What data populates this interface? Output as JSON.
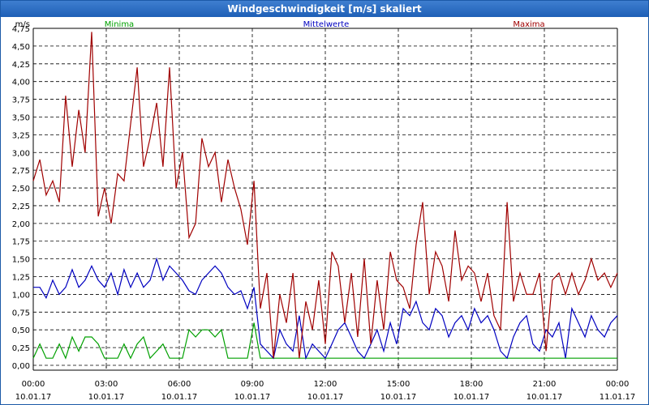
{
  "window": {
    "title": "Windgeschwindigkeit [m/s] skaliert"
  },
  "chart_data": {
    "type": "line",
    "title": "Windgeschwindigkeit [m/s] skaliert",
    "ylabel": "m/s",
    "ylim": [
      0,
      4.75
    ],
    "yticks": [
      "0,00",
      "0,25",
      "0,50",
      "0,75",
      "1,00",
      "1,25",
      "1,50",
      "1,75",
      "2,00",
      "2,25",
      "2,50",
      "2,75",
      "3,00",
      "3,25",
      "3,50",
      "3,75",
      "4,00",
      "4,25",
      "4,50",
      "4,75"
    ],
    "xlim": [
      0,
      24
    ],
    "xticks": [
      {
        "time": "00:00",
        "date": "10.01.17"
      },
      {
        "time": "03:00",
        "date": "10.01.17"
      },
      {
        "time": "06:00",
        "date": "10.01.17"
      },
      {
        "time": "09:00",
        "date": "10.01.17"
      },
      {
        "time": "12:00",
        "date": "10.01.17"
      },
      {
        "time": "15:00",
        "date": "10.01.17"
      },
      {
        "time": "18:00",
        "date": "10.01.17"
      },
      {
        "time": "21:00",
        "date": "10.01.17"
      },
      {
        "time": "00:00",
        "date": "11.01.17"
      }
    ],
    "grid": true,
    "series": [
      {
        "name": "Minima",
        "color": "#00a000",
        "x": [
          0,
          0.27,
          0.53,
          0.8,
          1.07,
          1.33,
          1.6,
          1.87,
          2.13,
          2.4,
          2.67,
          2.93,
          3.2,
          3.47,
          3.73,
          4,
          4.27,
          4.53,
          4.8,
          5.07,
          5.33,
          5.6,
          5.87,
          6.13,
          6.4,
          6.67,
          6.93,
          7.2,
          7.47,
          7.73,
          8,
          8.27,
          8.53,
          8.8,
          9.07,
          9.33,
          12,
          15,
          18,
          21,
          24
        ],
        "values": [
          0.1,
          0.3,
          0.1,
          0.1,
          0.3,
          0.1,
          0.4,
          0.2,
          0.4,
          0.4,
          0.3,
          0.1,
          0.1,
          0.1,
          0.3,
          0.1,
          0.3,
          0.4,
          0.1,
          0.2,
          0.3,
          0.1,
          0.1,
          0.1,
          0.5,
          0.4,
          0.5,
          0.5,
          0.4,
          0.5,
          0.1,
          0.1,
          0.1,
          0.1,
          0.6,
          0.1,
          0.1,
          0.1,
          0.1,
          0.1,
          0.1
        ]
      },
      {
        "name": "Mittelwerte",
        "color": "#0000c0",
        "x": [
          0,
          0.27,
          0.53,
          0.8,
          1.07,
          1.33,
          1.6,
          1.87,
          2.13,
          2.4,
          2.67,
          2.93,
          3.2,
          3.47,
          3.73,
          4,
          4.27,
          4.53,
          4.8,
          5.07,
          5.33,
          5.6,
          5.87,
          6.13,
          6.4,
          6.67,
          6.93,
          7.2,
          7.47,
          7.73,
          8,
          8.27,
          8.53,
          8.8,
          9.07,
          9.33,
          9.6,
          9.87,
          10.13,
          10.4,
          10.67,
          10.93,
          11.2,
          11.47,
          11.73,
          12,
          12.27,
          12.53,
          12.8,
          13.07,
          13.33,
          13.6,
          13.87,
          14.13,
          14.4,
          14.67,
          14.93,
          15.2,
          15.47,
          15.73,
          16,
          16.27,
          16.53,
          16.8,
          17.07,
          17.33,
          17.6,
          17.87,
          18.13,
          18.4,
          18.67,
          18.93,
          19.2,
          19.47,
          19.73,
          20,
          20.27,
          20.53,
          20.8,
          21.07,
          21.33,
          21.6,
          21.87,
          22.13,
          22.4,
          22.67,
          22.93,
          23.2,
          23.47,
          23.73,
          24
        ],
        "values": [
          1.1,
          1.1,
          0.95,
          1.2,
          1.0,
          1.1,
          1.35,
          1.1,
          1.2,
          1.4,
          1.2,
          1.1,
          1.3,
          1.0,
          1.35,
          1.1,
          1.3,
          1.1,
          1.2,
          1.5,
          1.2,
          1.4,
          1.3,
          1.2,
          1.05,
          1.0,
          1.2,
          1.3,
          1.4,
          1.3,
          1.1,
          1.0,
          1.05,
          0.8,
          1.1,
          0.3,
          0.2,
          0.1,
          0.5,
          0.3,
          0.2,
          0.7,
          0.1,
          0.3,
          0.2,
          0.1,
          0.3,
          0.5,
          0.6,
          0.4,
          0.2,
          0.1,
          0.3,
          0.5,
          0.2,
          0.6,
          0.3,
          0.8,
          0.7,
          0.9,
          0.6,
          0.5,
          0.8,
          0.7,
          0.4,
          0.6,
          0.7,
          0.5,
          0.8,
          0.6,
          0.7,
          0.5,
          0.2,
          0.1,
          0.4,
          0.6,
          0.7,
          0.3,
          0.2,
          0.5,
          0.4,
          0.6,
          0.1,
          0.8,
          0.6,
          0.4,
          0.7,
          0.5,
          0.4,
          0.6,
          0.7
        ]
      },
      {
        "name": "Maxima",
        "color": "#a00000",
        "x": [
          0,
          0.27,
          0.53,
          0.8,
          1.07,
          1.33,
          1.6,
          1.87,
          2.13,
          2.4,
          2.67,
          2.93,
          3.2,
          3.47,
          3.73,
          4,
          4.27,
          4.53,
          4.8,
          5.07,
          5.33,
          5.6,
          5.87,
          6.13,
          6.4,
          6.67,
          6.93,
          7.2,
          7.47,
          7.73,
          8,
          8.27,
          8.53,
          8.8,
          9.07,
          9.33,
          9.6,
          9.87,
          10.13,
          10.4,
          10.67,
          10.93,
          11.2,
          11.47,
          11.73,
          12,
          12.27,
          12.53,
          12.8,
          13.07,
          13.33,
          13.6,
          13.87,
          14.13,
          14.4,
          14.67,
          14.93,
          15.2,
          15.47,
          15.73,
          16,
          16.27,
          16.53,
          16.8,
          17.07,
          17.33,
          17.6,
          17.87,
          18.13,
          18.4,
          18.67,
          18.93,
          19.2,
          19.47,
          19.73,
          20,
          20.27,
          20.53,
          20.8,
          21.07,
          21.33,
          21.6,
          21.87,
          22.13,
          22.4,
          22.67,
          22.93,
          23.2,
          23.47,
          23.73,
          24
        ],
        "values": [
          2.6,
          2.9,
          2.4,
          2.6,
          2.3,
          3.8,
          2.8,
          3.6,
          3.0,
          4.7,
          2.1,
          2.5,
          2.0,
          2.7,
          2.6,
          3.4,
          4.2,
          2.8,
          3.2,
          3.7,
          2.8,
          4.2,
          2.5,
          3.0,
          1.8,
          2.0,
          3.2,
          2.8,
          3.0,
          2.3,
          2.9,
          2.5,
          2.2,
          1.7,
          2.6,
          0.8,
          1.3,
          0.1,
          1.0,
          0.6,
          1.3,
          0.1,
          0.9,
          0.5,
          1.2,
          0.3,
          1.6,
          1.4,
          0.6,
          1.3,
          0.4,
          1.5,
          0.3,
          1.2,
          0.5,
          1.6,
          1.2,
          1.1,
          0.8,
          1.7,
          2.3,
          1.0,
          1.6,
          1.4,
          0.9,
          1.9,
          1.2,
          1.4,
          1.3,
          0.9,
          1.3,
          0.7,
          0.5,
          2.3,
          0.9,
          1.3,
          1.0,
          1.0,
          1.3,
          0.2,
          1.2,
          1.3,
          1.0,
          1.3,
          1.0,
          1.2,
          1.5,
          1.2,
          1.3,
          1.1,
          1.3
        ]
      }
    ]
  }
}
